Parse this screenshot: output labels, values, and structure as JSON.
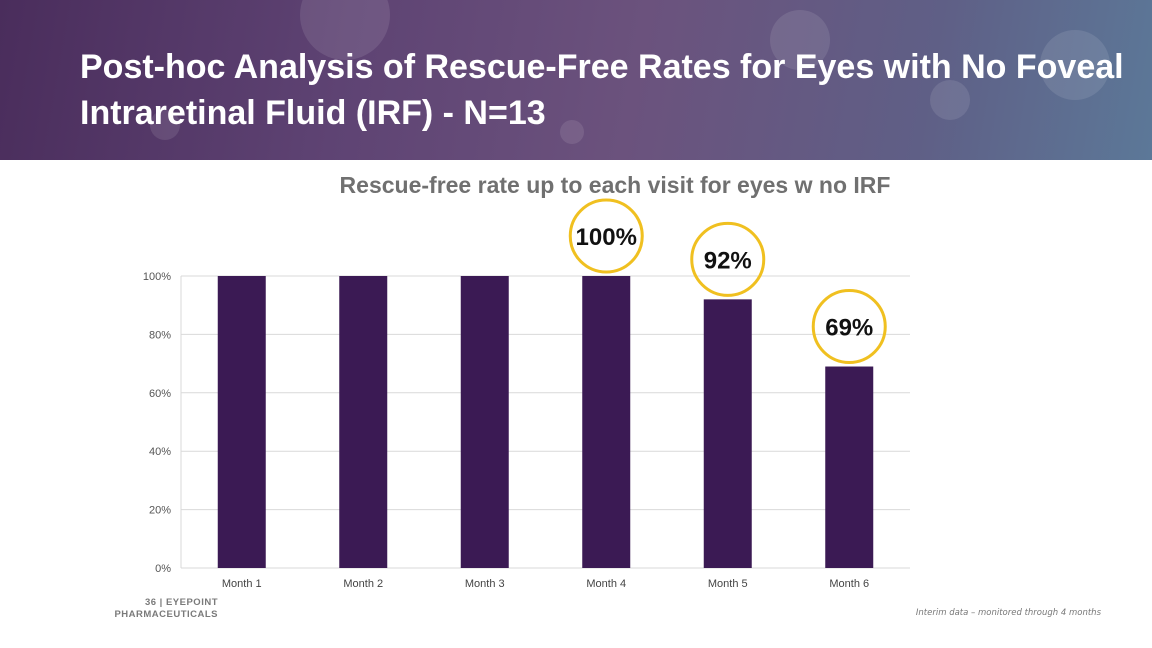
{
  "slide": {
    "title": "Post-hoc Analysis of Rescue-Free Rates for Eyes with No Foveal Intraretinal Fluid (IRF) -  N=13",
    "page_number": "36",
    "brand_line1": "EYEPOINT",
    "brand_line2": "PHARMACEUTICALS",
    "footnote": "Interim data – monitored through 4 months"
  },
  "colors": {
    "bar": "#3b1a54",
    "callout_ring": "#f0c020",
    "grid": "#d9d9d9"
  },
  "chart_data": {
    "type": "bar",
    "title": "Rescue-free rate up to each visit  for eyes w no IRF",
    "categories": [
      "Month 1",
      "Month 2",
      "Month 3",
      "Month 4",
      "Month 5",
      "Month 6"
    ],
    "values": [
      100,
      100,
      100,
      100,
      92,
      69
    ],
    "ylim": [
      0,
      100
    ],
    "yticks": [
      0,
      20,
      40,
      60,
      80,
      100
    ],
    "ytick_labels": [
      "0%",
      "20%",
      "40%",
      "60%",
      "80%",
      "100%"
    ],
    "xlabel": "",
    "ylabel": "",
    "grid": true,
    "callouts": [
      {
        "category": "Month 4",
        "label": "100%"
      },
      {
        "category": "Month 5",
        "label": "92%"
      },
      {
        "category": "Month 6",
        "label": "69%"
      }
    ]
  }
}
